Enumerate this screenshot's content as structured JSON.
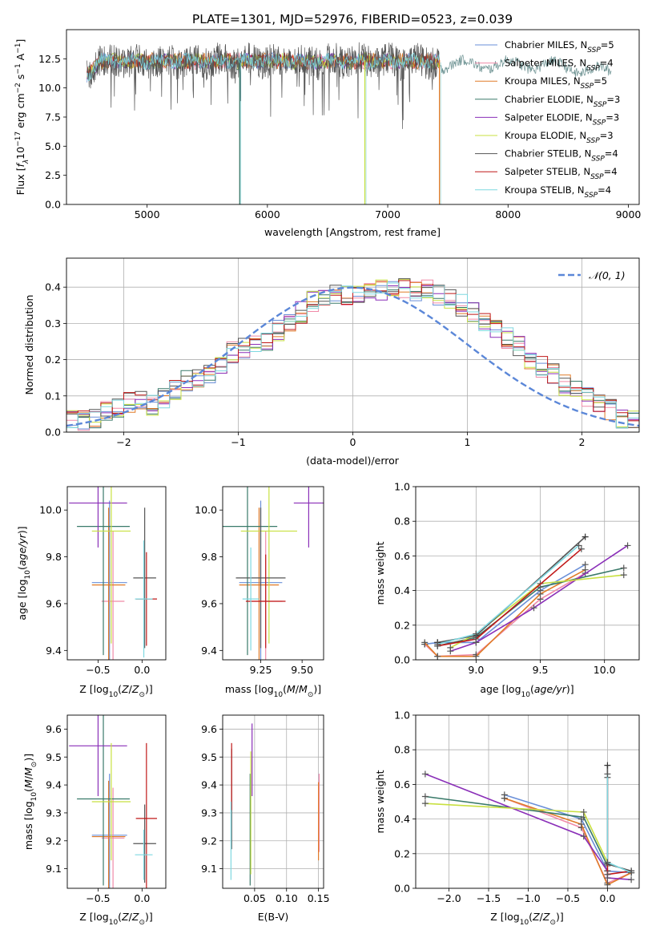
{
  "title": "PLATE=1301, MJD=52976, FIBERID=0523, z=0.039",
  "colors": {
    "Chabrier MILES": "#6a8fd8",
    "Salpeter MILES": "#f08aa8",
    "Kroupa MILES": "#e07b28",
    "Chabrier ELODIE": "#3a7a6a",
    "Salpeter ELODIE": "#8a2fb8",
    "Kroupa ELODIE": "#c8e040",
    "Chabrier STELIB": "#555555",
    "Salpeter STELIB": "#c01818",
    "Kroupa STELIB": "#7fd8e0"
  },
  "legend_spectrum": [
    {
      "name": "Chabrier MILES",
      "n": "5"
    },
    {
      "name": "Salpeter MILES",
      "n": "4"
    },
    {
      "name": "Kroupa MILES",
      "n": "5"
    },
    {
      "name": "Chabrier ELODIE",
      "n": "3"
    },
    {
      "name": "Salpeter ELODIE",
      "n": "3"
    },
    {
      "name": "Kroupa ELODIE",
      "n": "3"
    },
    {
      "name": "Chabrier STELIB",
      "n": "4"
    },
    {
      "name": "Salpeter STELIB",
      "n": "4"
    },
    {
      "name": "Kroupa STELIB",
      "n": "4"
    }
  ],
  "legend_hist": "𝒩(0, 1)",
  "chart_data": [
    {
      "id": "spectrum",
      "type": "line",
      "xlabel": "wavelength [Angstrom, rest frame]",
      "ylabel": "Flux [fλ10⁻¹⁷ erg cm⁻² s⁻¹ A⁻¹]",
      "xlim": [
        4330,
        9090
      ],
      "ylim": [
        0,
        15
      ],
      "xticks": [
        5000,
        6000,
        7000,
        8000,
        9000
      ],
      "yticks": [
        0.0,
        2.5,
        5.0,
        7.5,
        10.0,
        12.5
      ],
      "flux_level": 12.5,
      "absorption_features": [
        {
          "x": 5770,
          "depth_to": 0.0
        },
        {
          "x": 6810,
          "depth_to": 0.0
        },
        {
          "x": 7430,
          "depth_to": 0.0
        }
      ],
      "wavelength_range_models": [
        4500,
        7430
      ],
      "wavelength_range_observed": [
        7430,
        8860
      ]
    },
    {
      "id": "residual-hist",
      "type": "bar",
      "xlabel": "(data-model)/error",
      "ylabel": "Normed distribution",
      "xlim": [
        -2.5,
        2.5
      ],
      "ylim": [
        0,
        0.48
      ],
      "xticks": [
        -2,
        -1,
        0,
        1,
        2
      ],
      "yticks": [
        0.0,
        0.1,
        0.2,
        0.3,
        0.4
      ],
      "grid": true,
      "legend": "top-right",
      "bin_width": 0.1,
      "hist_base": [
        0.035,
        0.03,
        0.038,
        0.055,
        0.07,
        0.08,
        0.083,
        0.075,
        0.095,
        0.12,
        0.14,
        0.15,
        0.155,
        0.19,
        0.22,
        0.23,
        0.24,
        0.25,
        0.28,
        0.3,
        0.33,
        0.36,
        0.37,
        0.38,
        0.38,
        0.385,
        0.38,
        0.39,
        0.4,
        0.4,
        0.39,
        0.39,
        0.38,
        0.37,
        0.35,
        0.33,
        0.3,
        0.28,
        0.26,
        0.24,
        0.2,
        0.18,
        0.16,
        0.13,
        0.12,
        0.1,
        0.08,
        0.06,
        0.04,
        0.035
      ],
      "normal_curve": {
        "mean": 0,
        "sigma": 1
      }
    },
    {
      "id": "age-vs-Z",
      "type": "scatter",
      "xlabel": "Z [log₁₀(Z/Z⊙)]",
      "ylabel": "age  [log₁₀(age/yr)]",
      "xlim": [
        -0.85,
        0.27
      ],
      "ylim": [
        9.36,
        10.1
      ],
      "xticks": [
        -0.5,
        0.0
      ],
      "yticks": [
        9.4,
        9.6,
        9.8,
        10.0
      ],
      "points": [
        {
          "model": "Chabrier MILES",
          "x": -0.37,
          "y": 9.69,
          "xerr": 0.2,
          "yerr": 0.35
        },
        {
          "model": "Salpeter MILES",
          "x": -0.33,
          "y": 9.61,
          "xerr": 0.13,
          "yerr": 0.3
        },
        {
          "model": "Kroupa MILES",
          "x": -0.38,
          "y": 9.68,
          "xerr": 0.19,
          "yerr": 0.33
        },
        {
          "model": "Chabrier ELODIE",
          "x": -0.44,
          "y": 9.93,
          "xerr": 0.3,
          "yerr": 0.55
        },
        {
          "model": "Salpeter ELODIE",
          "x": -0.5,
          "y": 10.03,
          "xerr": 0.33,
          "yerr": 0.19
        },
        {
          "model": "Kroupa ELODIE",
          "x": -0.35,
          "y": 9.91,
          "xerr": 0.22,
          "yerr": 0.48
        },
        {
          "model": "Chabrier STELIB",
          "x": 0.03,
          "y": 9.71,
          "xerr": 0.13,
          "yerr": 0.3
        },
        {
          "model": "Salpeter STELIB",
          "x": 0.05,
          "y": 9.62,
          "xerr": 0.12,
          "yerr": 0.2
        },
        {
          "model": "Kroupa STELIB",
          "x": 0.02,
          "y": 9.62,
          "xerr": 0.1,
          "yerr": 0.25
        }
      ]
    },
    {
      "id": "age-vs-mass",
      "type": "scatter",
      "xlabel": "mass [log₁₀(M/M⊙)]",
      "ylabel": "",
      "xlim": [
        9.02,
        9.63
      ],
      "ylim": [
        9.36,
        10.1
      ],
      "xticks": [
        9.25,
        9.5
      ],
      "yticks": [
        9.4,
        9.6,
        9.8,
        10.0
      ],
      "points": [
        {
          "model": "Chabrier MILES",
          "x": 9.25,
          "y": 9.69,
          "xerr": 0.13,
          "yerr": 0.35
        },
        {
          "model": "Salpeter MILES",
          "x": 9.28,
          "y": 9.61,
          "xerr": 0.1,
          "yerr": 0.3
        },
        {
          "model": "Kroupa MILES",
          "x": 9.24,
          "y": 9.68,
          "xerr": 0.12,
          "yerr": 0.33
        },
        {
          "model": "Chabrier ELODIE",
          "x": 9.17,
          "y": 9.93,
          "xerr": 0.18,
          "yerr": 0.55
        },
        {
          "model": "Salpeter ELODIE",
          "x": 9.54,
          "y": 10.03,
          "xerr": 0.09,
          "yerr": 0.19
        },
        {
          "model": "Kroupa ELODIE",
          "x": 9.3,
          "y": 9.91,
          "xerr": 0.17,
          "yerr": 0.48
        },
        {
          "model": "Chabrier STELIB",
          "x": 9.25,
          "y": 9.71,
          "xerr": 0.15,
          "yerr": 0.3
        },
        {
          "model": "Salpeter STELIB",
          "x": 9.28,
          "y": 9.61,
          "xerr": 0.12,
          "yerr": 0.2
        },
        {
          "model": "Kroupa STELIB",
          "x": 9.19,
          "y": 9.62,
          "xerr": 0.05,
          "yerr": 0.22
        }
      ]
    },
    {
      "id": "mass-weight-vs-age",
      "type": "line",
      "xlabel": "age  [log₁₀(age/yr)]",
      "ylabel": "mass weight",
      "xlim": [
        8.53,
        10.27
      ],
      "ylim": [
        0,
        1
      ],
      "xticks": [
        9.0,
        9.5,
        10.0
      ],
      "yticks": [
        0.0,
        0.2,
        0.4,
        0.6,
        0.8,
        1.0
      ],
      "grid": true,
      "series": [
        {
          "model": "Chabrier MILES",
          "x": [
            8.6,
            8.7,
            9.0,
            9.5,
            9.85
          ],
          "y": [
            0.09,
            0.1,
            0.1,
            0.4,
            0.55
          ]
        },
        {
          "model": "Salpeter MILES",
          "x": [
            8.6,
            8.7,
            9.0,
            9.5,
            9.85
          ],
          "y": [
            0.09,
            0.02,
            0.03,
            0.35,
            0.5
          ]
        },
        {
          "model": "Kroupa MILES",
          "x": [
            8.6,
            8.7,
            9.0,
            9.5,
            9.85
          ],
          "y": [
            0.1,
            0.02,
            0.02,
            0.38,
            0.52
          ]
        },
        {
          "model": "Chabrier ELODIE",
          "x": [
            8.7,
            9.0,
            9.5,
            10.15
          ],
          "y": [
            0.08,
            0.13,
            0.42,
            0.53
          ]
        },
        {
          "model": "Salpeter ELODIE",
          "x": [
            8.8,
            9.0,
            9.45,
            10.18
          ],
          "y": [
            0.05,
            0.1,
            0.3,
            0.66
          ]
        },
        {
          "model": "Kroupa ELODIE",
          "x": [
            8.8,
            9.0,
            9.5,
            10.15
          ],
          "y": [
            0.07,
            0.15,
            0.44,
            0.49
          ]
        },
        {
          "model": "Chabrier STELIB",
          "x": [
            8.7,
            9.0,
            9.85
          ],
          "y": [
            0.1,
            0.14,
            0.71
          ]
        },
        {
          "model": "Salpeter STELIB",
          "x": [
            8.7,
            9.0,
            9.82
          ],
          "y": [
            0.08,
            0.12,
            0.64
          ]
        },
        {
          "model": "Kroupa STELIB",
          "x": [
            8.7,
            9.0,
            9.8
          ],
          "y": [
            0.09,
            0.15,
            0.66
          ]
        }
      ]
    },
    {
      "id": "mass-vs-Z",
      "type": "scatter",
      "xlabel": "Z [log₁₀(Z/Z⊙)]",
      "ylabel": "mass [log₁₀(M/M⊙)]",
      "xlim": [
        -0.85,
        0.27
      ],
      "ylim": [
        9.03,
        9.65
      ],
      "xticks": [
        -0.5,
        0.0
      ],
      "yticks": [
        9.1,
        9.2,
        9.3,
        9.4,
        9.5,
        9.6
      ],
      "points": [
        {
          "model": "Chabrier MILES",
          "x": -0.37,
          "y": 9.22,
          "xerr": 0.2,
          "yerr": 0.22
        },
        {
          "model": "Salpeter MILES",
          "x": -0.33,
          "y": 9.21,
          "xerr": 0.13,
          "yerr": 0.18
        },
        {
          "model": "Kroupa MILES",
          "x": -0.38,
          "y": 9.215,
          "xerr": 0.19,
          "yerr": 0.2
        },
        {
          "model": "Chabrier ELODIE",
          "x": -0.44,
          "y": 9.35,
          "xerr": 0.3,
          "yerr": 0.31
        },
        {
          "model": "Salpeter ELODIE",
          "x": -0.5,
          "y": 9.54,
          "xerr": 0.33,
          "yerr": 0.18
        },
        {
          "model": "Kroupa ELODIE",
          "x": -0.35,
          "y": 9.34,
          "xerr": 0.22,
          "yerr": 0.21
        },
        {
          "model": "Chabrier STELIB",
          "x": 0.03,
          "y": 9.19,
          "xerr": 0.13,
          "yerr": 0.14
        },
        {
          "model": "Salpeter STELIB",
          "x": 0.05,
          "y": 9.28,
          "xerr": 0.12,
          "yerr": 0.27
        },
        {
          "model": "Kroupa STELIB",
          "x": 0.02,
          "y": 9.15,
          "xerr": 0.1,
          "yerr": 0.09
        }
      ]
    },
    {
      "id": "mass-vs-EBV",
      "type": "scatter",
      "xlabel": "E(B-V)",
      "ylabel": "",
      "xlim": [
        0.0,
        0.158
      ],
      "ylim": [
        9.03,
        9.65
      ],
      "xticks": [
        0.05,
        0.1,
        0.15
      ],
      "yticks": [
        9.1,
        9.2,
        9.3,
        9.4,
        9.5,
        9.6
      ],
      "grid": true,
      "points": [
        {
          "model": "Chabrier MILES",
          "x": 0.151,
          "y": 9.34,
          "yerr": 0.1
        },
        {
          "model": "Salpeter MILES",
          "x": 0.151,
          "y": 9.3,
          "yerr": 0.14
        },
        {
          "model": "Kroupa MILES",
          "x": 0.15,
          "y": 9.27,
          "yerr": 0.14
        },
        {
          "model": "Chabrier ELODIE",
          "x": 0.043,
          "y": 9.24,
          "yerr": 0.2
        },
        {
          "model": "Salpeter ELODIE",
          "x": 0.046,
          "y": 9.49,
          "yerr": 0.13
        },
        {
          "model": "Kroupa ELODIE",
          "x": 0.044,
          "y": 9.3,
          "yerr": 0.22
        },
        {
          "model": "Chabrier STELIB",
          "x": 0.014,
          "y": 9.35,
          "yerr": 0.18
        },
        {
          "model": "Salpeter STELIB",
          "x": 0.014,
          "y": 9.43,
          "yerr": 0.12
        },
        {
          "model": "Kroupa STELIB",
          "x": 0.013,
          "y": 9.2,
          "yerr": 0.14
        }
      ]
    },
    {
      "id": "mass-weight-vs-Z",
      "type": "line",
      "xlabel": "Z [log₁₀(Z/Z⊙)]",
      "ylabel": "mass weight",
      "xlim": [
        -2.42,
        0.4
      ],
      "ylim": [
        0,
        1
      ],
      "xticks": [
        -2.0,
        -1.5,
        -1.0,
        -0.5,
        0.0
      ],
      "yticks": [
        0.0,
        0.2,
        0.4,
        0.6,
        0.8,
        1.0
      ],
      "grid": true,
      "series": [
        {
          "model": "Chabrier MILES",
          "x": [
            -1.3,
            -0.33,
            0.0,
            0.0,
            0.3
          ],
          "y": [
            0.54,
            0.4,
            0.1,
            0.1,
            0.09
          ]
        },
        {
          "model": "Salpeter MILES",
          "x": [
            -1.3,
            -0.33,
            0.0,
            0.3
          ],
          "y": [
            0.52,
            0.35,
            0.03,
            0.09
          ]
        },
        {
          "model": "Kroupa MILES",
          "x": [
            -1.3,
            -0.33,
            0.0,
            0.3
          ],
          "y": [
            0.52,
            0.37,
            0.02,
            0.09
          ]
        },
        {
          "model": "Chabrier ELODIE",
          "x": [
            -2.3,
            -0.3,
            0.0
          ],
          "y": [
            0.53,
            0.41,
            0.13
          ]
        },
        {
          "model": "Salpeter ELODIE",
          "x": [
            -2.3,
            -0.3,
            0.0,
            0.0,
            0.3
          ],
          "y": [
            0.66,
            0.3,
            0.1,
            0.06,
            0.05
          ]
        },
        {
          "model": "Kroupa ELODIE",
          "x": [
            -2.3,
            -0.3,
            0.0
          ],
          "y": [
            0.49,
            0.44,
            0.15
          ]
        },
        {
          "model": "Chabrier STELIB",
          "x": [
            0.0,
            0.0,
            0.3
          ],
          "y": [
            0.71,
            0.14,
            0.1
          ]
        },
        {
          "model": "Salpeter STELIB",
          "x": [
            0.0,
            0.0,
            0.3
          ],
          "y": [
            0.64,
            0.08,
            0.1
          ]
        },
        {
          "model": "Kroupa STELIB",
          "x": [
            0.0,
            0.0,
            0.3
          ],
          "y": [
            0.66,
            0.15,
            0.09
          ]
        }
      ]
    }
  ]
}
